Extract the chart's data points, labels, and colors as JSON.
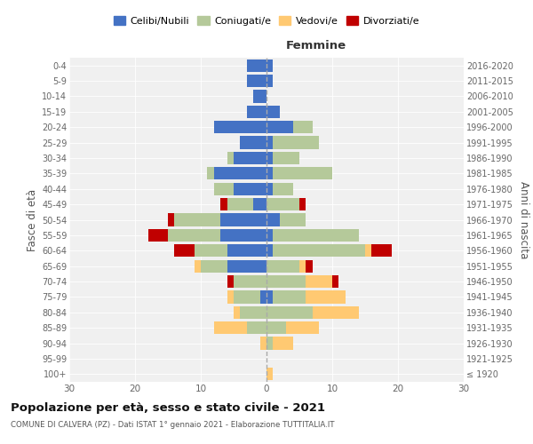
{
  "age_groups": [
    "100+",
    "95-99",
    "90-94",
    "85-89",
    "80-84",
    "75-79",
    "70-74",
    "65-69",
    "60-64",
    "55-59",
    "50-54",
    "45-49",
    "40-44",
    "35-39",
    "30-34",
    "25-29",
    "20-24",
    "15-19",
    "10-14",
    "5-9",
    "0-4"
  ],
  "birth_years": [
    "≤ 1920",
    "1921-1925",
    "1926-1930",
    "1931-1935",
    "1936-1940",
    "1941-1945",
    "1946-1950",
    "1951-1955",
    "1956-1960",
    "1961-1965",
    "1966-1970",
    "1971-1975",
    "1976-1980",
    "1981-1985",
    "1986-1990",
    "1991-1995",
    "1996-2000",
    "2001-2005",
    "2006-2010",
    "2011-2015",
    "2016-2020"
  ],
  "males": {
    "celibi": [
      0,
      0,
      0,
      0,
      0,
      1,
      0,
      6,
      6,
      7,
      7,
      2,
      5,
      8,
      5,
      4,
      8,
      3,
      2,
      3,
      3
    ],
    "coniugati": [
      0,
      0,
      0,
      3,
      4,
      4,
      5,
      4,
      5,
      8,
      7,
      4,
      3,
      1,
      1,
      0,
      0,
      0,
      0,
      0,
      0
    ],
    "vedovi": [
      0,
      0,
      1,
      5,
      1,
      1,
      0,
      1,
      0,
      0,
      0,
      0,
      0,
      0,
      0,
      0,
      0,
      0,
      0,
      0,
      0
    ],
    "divorziati": [
      0,
      0,
      0,
      0,
      0,
      0,
      1,
      0,
      3,
      3,
      1,
      1,
      0,
      0,
      0,
      0,
      0,
      0,
      0,
      0,
      0
    ]
  },
  "females": {
    "nubili": [
      0,
      0,
      0,
      0,
      0,
      1,
      0,
      0,
      1,
      1,
      2,
      0,
      1,
      1,
      1,
      1,
      4,
      2,
      0,
      1,
      1
    ],
    "coniugate": [
      0,
      0,
      1,
      3,
      7,
      5,
      6,
      5,
      14,
      13,
      4,
      5,
      3,
      9,
      4,
      7,
      3,
      0,
      0,
      0,
      0
    ],
    "vedove": [
      1,
      0,
      3,
      5,
      7,
      6,
      4,
      1,
      1,
      0,
      0,
      0,
      0,
      0,
      0,
      0,
      0,
      0,
      0,
      0,
      0
    ],
    "divorziate": [
      0,
      0,
      0,
      0,
      0,
      0,
      1,
      1,
      3,
      0,
      0,
      1,
      0,
      0,
      0,
      0,
      0,
      0,
      0,
      0,
      0
    ]
  },
  "color_celibi": "#4472c4",
  "color_coniugati": "#b5c99a",
  "color_vedovi": "#ffc972",
  "color_divorziati": "#c00000",
  "xlim": 30,
  "title": "Popolazione per età, sesso e stato civile - 2021",
  "subtitle": "COMUNE DI CALVERA (PZ) - Dati ISTAT 1° gennaio 2021 - Elaborazione TUTTITALIA.IT",
  "xlabel_right": "Femmine",
  "ylabel_left": "Fasce di età",
  "ylabel_right": "Anni di nascita",
  "bg_color": "#f0f0f0"
}
